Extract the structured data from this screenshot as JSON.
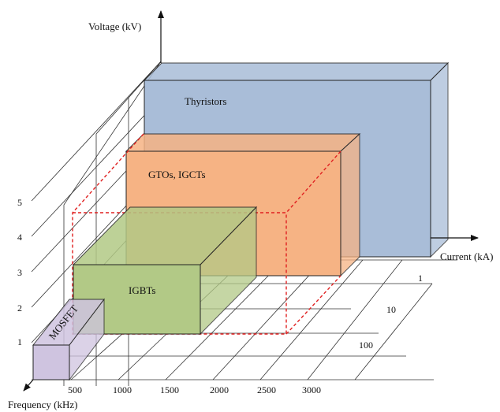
{
  "axes": {
    "voltage_label": "Voltage (kV)",
    "current_label": "Current (kA)",
    "frequency_label": "Frequency (kHz)",
    "voltage_ticks": [
      "1",
      "2",
      "3",
      "4",
      "5"
    ],
    "current_ticks": [
      "1",
      "10",
      "100"
    ],
    "frequency_ticks": [
      "500",
      "1000",
      "1500",
      "2000",
      "2500",
      "3000"
    ]
  },
  "devices": {
    "thyristors": {
      "label": "Thyristors",
      "color": "#a9bdd8"
    },
    "gtos_igcts": {
      "label": "GTOs, IGCTs",
      "color": "#f6b384"
    },
    "igbts": {
      "label": "IGBTs",
      "color": "#b2c986"
    },
    "mosfet": {
      "label": "MOSFET",
      "color": "#cfc4e0"
    }
  },
  "dashed_region_color": "#e02020"
}
